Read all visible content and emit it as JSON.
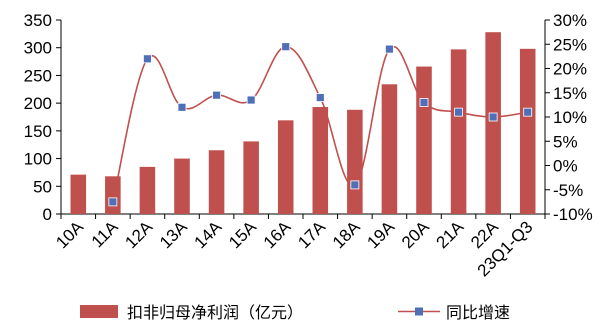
{
  "chart_data": {
    "type": "bar+line",
    "categories": [
      "10A",
      "11A",
      "12A",
      "13A",
      "14A",
      "15A",
      "16A",
      "17A",
      "18A",
      "19A",
      "20A",
      "21A",
      "22A",
      "23Q1-Q3"
    ],
    "series": [
      {
        "name": "扣非归母净利润（亿元）",
        "type": "bar",
        "axis": "left",
        "values": [
          71,
          68,
          85,
          100,
          115,
          131,
          169,
          193,
          188,
          234,
          266,
          297,
          328,
          298
        ]
      },
      {
        "name": "同比增速",
        "type": "line",
        "axis": "right",
        "unit": "%",
        "values": [
          null,
          -7.5,
          22.0,
          12.0,
          14.5,
          13.5,
          24.5,
          14.0,
          -4.0,
          24.0,
          13.0,
          11.0,
          10.0,
          11.0
        ]
      }
    ],
    "y_left": {
      "min": 0,
      "max": 350,
      "ticks": [
        0,
        50,
        100,
        150,
        200,
        250,
        300,
        350
      ],
      "tick_labels": [
        "0",
        "50",
        "100",
        "150",
        "200",
        "250",
        "300",
        "350"
      ]
    },
    "y_right": {
      "min": -10,
      "max": 30,
      "ticks": [
        -10,
        -5,
        0,
        5,
        10,
        15,
        20,
        25,
        30
      ],
      "tick_labels": [
        "-10%",
        "-5%",
        "0%",
        "5%",
        "10%",
        "15%",
        "20%",
        "25%",
        "30%"
      ]
    },
    "grid": false,
    "legend_position": "bottom",
    "colors": {
      "bar": "#c0504d",
      "line": "#c0504d",
      "marker": "#4f6fb8",
      "axis": "#000000"
    }
  }
}
